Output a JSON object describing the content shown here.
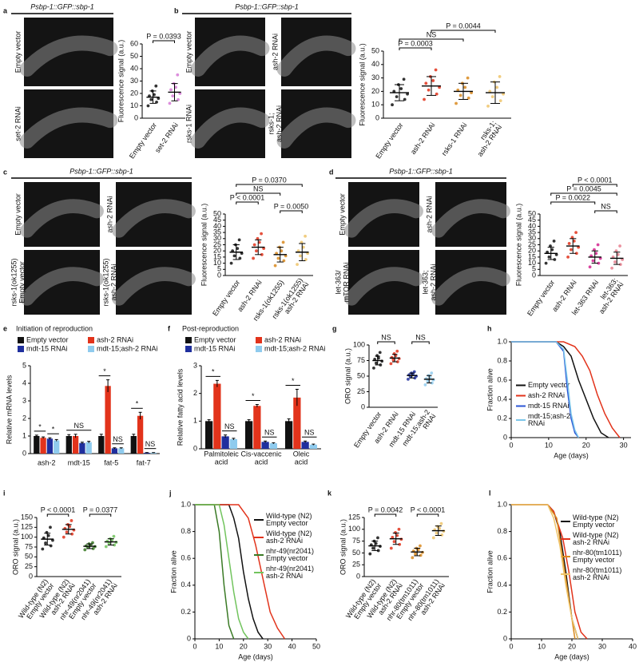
{
  "chart_data": [
    {
      "label": "a",
      "type": "dot",
      "images": {
        "title": "Psbp-1::GFP::sbp-1",
        "labels": [
          "Empty vector",
          "set-2 RNAi"
        ]
      },
      "ylabel": "Fluorescence signal (a.u.)",
      "ylim": [
        0,
        60
      ],
      "yticks": [
        0,
        10,
        20,
        30,
        40,
        50,
        60
      ],
      "categories": [
        "Empty vector",
        "set-2 RNAi"
      ],
      "colors": [
        "#111111",
        "#d67ad6"
      ],
      "mean": [
        17,
        21
      ],
      "sd": [
        5,
        7
      ],
      "points": [
        [
          10,
          13,
          15,
          16,
          18,
          19,
          22,
          26
        ],
        [
          12,
          15,
          18,
          20,
          23,
          25,
          28,
          35
        ]
      ],
      "comparisons": [
        "P = 0.0393"
      ]
    },
    {
      "label": "b",
      "type": "dot",
      "images": {
        "title": "Psbp-1::GFP::sbp-1",
        "labels": [
          "Empty vector",
          "ash-2 RNAi",
          "rsks-1 RNAi",
          [
            "rsks-1;",
            "ash-2 RNAi"
          ]
        ]
      },
      "ylabel": "Fluorescence signal (a.u.)",
      "ylim": [
        0,
        50
      ],
      "yticks": [
        0,
        10,
        20,
        30,
        40,
        50
      ],
      "categories": [
        "Empty vector",
        "ash-2 RNAi",
        "rsks-1 RNAi",
        [
          "rsks-1;",
          "ash-2 RNAi"
        ]
      ],
      "colors": [
        "#111111",
        "#e2331b",
        "#d98a1f",
        "#eec46a"
      ],
      "mean": [
        19,
        24,
        20,
        19
      ],
      "sd": [
        6,
        7,
        6,
        8
      ],
      "points": [
        [
          10,
          14,
          16,
          18,
          20,
          22,
          25,
          29
        ],
        [
          14,
          18,
          21,
          23,
          26,
          28,
          31,
          36
        ],
        [
          11,
          15,
          17,
          19,
          21,
          23,
          26,
          30
        ],
        [
          9,
          13,
          16,
          18,
          20,
          23,
          27,
          31
        ]
      ],
      "comparisons": [
        "P = 0.0003",
        "NS",
        "P = 0.0044"
      ]
    },
    {
      "label": "c",
      "type": "dot",
      "images": {
        "title": "Psbp-1::GFP::sbp-1",
        "labels": [
          "Empty vector",
          "ash-2 RNAi",
          [
            "rsks-1(ok1255)",
            "Empty vector"
          ],
          [
            "rsks-1(ok1255)",
            "ash-2 RNAi"
          ]
        ]
      },
      "ylabel": "Fluorescence signal (a.u.)",
      "ylim": [
        0,
        50
      ],
      "yticks": [
        0,
        5,
        10,
        15,
        20,
        25,
        30,
        35,
        40,
        45,
        50
      ],
      "categories": [
        "Empty vector",
        "ash-2 RNAi",
        "rsks-1(ok1255)",
        [
          "rsks-1(ok1255)",
          "ash-2 RNAi"
        ]
      ],
      "colors": [
        "#111111",
        "#e2331b",
        "#d98a1f",
        "#eec46a"
      ],
      "mean": [
        19,
        23,
        17,
        19
      ],
      "sd": [
        6,
        6,
        6,
        7
      ],
      "points": [
        [
          10,
          14,
          16,
          18,
          20,
          22,
          25,
          29
        ],
        [
          14,
          17,
          20,
          22,
          25,
          27,
          30,
          34
        ],
        [
          8,
          12,
          14,
          16,
          18,
          20,
          23,
          27
        ],
        [
          9,
          13,
          16,
          18,
          20,
          23,
          27,
          32
        ]
      ],
      "comparisons": [
        "P < 0.0001",
        "NS",
        "P = 0.0370",
        "P = 0.0050"
      ]
    },
    {
      "label": "d",
      "type": "dot",
      "images": {
        "title": "Psbp-1::GFP::sbp-1",
        "labels": [
          "Empty vector",
          "ash-2 RNAi",
          [
            "let-363/",
            "mTOR RNAi"
          ],
          [
            "let-363;",
            "ash-2 RNAi"
          ]
        ]
      },
      "ylabel": "Fluorescence signal (a.u.)",
      "ylim": [
        0,
        50
      ],
      "yticks": [
        0,
        5,
        10,
        15,
        20,
        25,
        30,
        35,
        40,
        45,
        50
      ],
      "categories": [
        "Empty vector",
        "ash-2 RNAi",
        "let-363 RNAi",
        [
          "let-363;",
          "ash-2 RNAi"
        ]
      ],
      "colors": [
        "#111111",
        "#e2331b",
        "#d4258f",
        "#e8808f"
      ],
      "mean": [
        18,
        24,
        15,
        14
      ],
      "sd": [
        5,
        6,
        5,
        5
      ],
      "points": [
        [
          10,
          13,
          15,
          17,
          19,
          21,
          24,
          28
        ],
        [
          15,
          18,
          21,
          23,
          26,
          28,
          31,
          35
        ],
        [
          7,
          10,
          12,
          14,
          16,
          18,
          21,
          25
        ],
        [
          6,
          9,
          11,
          13,
          15,
          17,
          20,
          24
        ]
      ],
      "comparisons": [
        "P < 0.0001",
        "P = 0.0045",
        "P = 0.0022",
        "NS"
      ]
    },
    {
      "label": "e",
      "type": "bar",
      "title": "Initiation of reproduction",
      "ylabel": "Relative mRNA levels",
      "ylim": [
        0,
        5
      ],
      "yticks": [
        0,
        1,
        2,
        3,
        4,
        5
      ],
      "categories": [
        "ash-2",
        "mdt-15",
        "fat-5",
        "fat-7"
      ],
      "series": [
        {
          "name": "Empty vector",
          "color": "#111111",
          "values": [
            1,
            1,
            1,
            1
          ],
          "errors": [
            0.05,
            0.08,
            0.1,
            0.1
          ]
        },
        {
          "name": "ash-2 RNAi",
          "color": "#e2331b",
          "values": [
            0.9,
            1.0,
            3.85,
            2.15
          ],
          "errors": [
            0.05,
            0.1,
            0.35,
            0.2
          ]
        },
        {
          "name": "mdt-15 RNAi",
          "color": "#1f2f9e",
          "values": [
            0.85,
            0.6,
            0.3,
            0.05
          ],
          "errors": [
            0.05,
            0.05,
            0.03,
            0.01
          ]
        },
        {
          "name": "mdt-15;ash-2 RNAi",
          "color": "#8fcbee",
          "values": [
            0.75,
            0.65,
            0.3,
            0.05
          ],
          "errors": [
            0.05,
            0.05,
            0.03,
            0.01
          ]
        }
      ],
      "annotations": [
        "*",
        "*",
        "NS",
        "*",
        "NS",
        "*",
        "NS"
      ]
    },
    {
      "label": "f",
      "type": "bar",
      "title": "Post-reproduction",
      "ylabel": "Relative fatty acid levels",
      "ylim": [
        0,
        3
      ],
      "yticks": [
        0,
        1,
        2,
        3
      ],
      "categories": [
        [
          "Palmitoleic",
          "acid"
        ],
        [
          "Cis-vaccenic",
          "acid"
        ],
        [
          "Oleic",
          "acid"
        ]
      ],
      "series": [
        {
          "name": "Empty vector",
          "color": "#111111",
          "values": [
            1,
            1,
            1
          ],
          "errors": [
            0.05,
            0.05,
            0.08
          ]
        },
        {
          "name": "ash-2 RNAi",
          "color": "#e2331b",
          "values": [
            2.35,
            1.55,
            1.85
          ],
          "errors": [
            0.12,
            0.05,
            0.3
          ]
        },
        {
          "name": "mdt-15 RNAi",
          "color": "#1f2f9e",
          "values": [
            0.45,
            0.25,
            0.25
          ],
          "errors": [
            0.05,
            0.03,
            0.03
          ]
        },
        {
          "name": "mdt-15;ash-2 RNAi",
          "color": "#8fcbee",
          "values": [
            0.35,
            0.2,
            0.15
          ],
          "errors": [
            0.03,
            0.02,
            0.02
          ]
        }
      ],
      "annotations": [
        "*",
        "NS",
        "*",
        "NS",
        "*",
        "NS"
      ]
    },
    {
      "label": "g",
      "type": "dot",
      "ylabel": "ORO signal (a.u.)",
      "ylim": [
        0,
        100
      ],
      "yticks": [
        0,
        25,
        50,
        75,
        100
      ],
      "categories": [
        "Empty vector",
        "ash-2 RNAi",
        "mdt-15 RNAi",
        [
          "mdt-15;ash-2",
          "RNAi"
        ]
      ],
      "colors": [
        "#111111",
        "#e2331b",
        "#1f2f9e",
        "#8fcbee"
      ],
      "mean": [
        75,
        79,
        51,
        45
      ],
      "sd": [
        7,
        6,
        4,
        6
      ],
      "points": [
        [
          63,
          68,
          71,
          74,
          77,
          79,
          83,
          88
        ],
        [
          70,
          73,
          76,
          78,
          80,
          83,
          86,
          90
        ],
        [
          45,
          47,
          49,
          50,
          52,
          53,
          55,
          57
        ],
        [
          36,
          39,
          42,
          44,
          46,
          48,
          51,
          55
        ]
      ],
      "comparisons": [
        "NS",
        "NS"
      ]
    },
    {
      "label": "h",
      "type": "survival",
      "xlabel": "Age (days)",
      "ylabel": "Fraction alive",
      "xlim": [
        0,
        32
      ],
      "xticks": [
        0,
        10,
        20,
        30
      ],
      "ylim": [
        0,
        1
      ],
      "yticks": [
        0,
        0.2,
        0.4,
        0.6,
        0.8,
        {
          "value": 1,
          "label": "1.0"
        }
      ],
      "series": [
        {
          "name": "Empty vector",
          "color": "#111111",
          "x": [
            0,
            12,
            14,
            16,
            18,
            20,
            22,
            24,
            26
          ],
          "values": [
            1,
            1,
            0.95,
            0.85,
            0.6,
            0.4,
            0.2,
            0.05,
            0
          ]
        },
        {
          "name": "ash-2 RNAi",
          "color": "#e2331b",
          "x": [
            0,
            14,
            17,
            19,
            21,
            23,
            25,
            27,
            29
          ],
          "values": [
            1,
            1,
            0.95,
            0.85,
            0.7,
            0.45,
            0.25,
            0.1,
            0
          ]
        },
        {
          "name": "mdt-15 RNAi",
          "color": "#2b55d6",
          "x": [
            0,
            12,
            14,
            15,
            16,
            17,
            18
          ],
          "values": [
            1,
            1,
            0.9,
            0.5,
            0.2,
            0.05,
            0
          ]
        },
        {
          "name": [
            "mdt-15;ash-2",
            "RNAi"
          ],
          "color": "#7cc6ea",
          "x": [
            0,
            12,
            14,
            15,
            16,
            17,
            18
          ],
          "values": [
            1,
            1,
            0.92,
            0.6,
            0.25,
            0.08,
            0
          ]
        }
      ]
    },
    {
      "label": "i",
      "type": "dot",
      "ylabel": "ORO signal (a.u.)",
      "ylim": [
        0,
        150
      ],
      "yticks": [
        0,
        25,
        50,
        75,
        100,
        125,
        150
      ],
      "categories": [
        [
          "Wild-type (N2)",
          "Empty vector"
        ],
        [
          "Wild-type (N2)",
          "ash-2 RNAi"
        ],
        [
          "nhr-49(nr2041)",
          "Empty vector"
        ],
        [
          "nhr-49(nr2041)",
          "ash-2 RNAi"
        ]
      ],
      "colors": [
        "#111111",
        "#e2331b",
        "#3a7a25",
        "#72c45e"
      ],
      "mean": [
        95,
        120,
        77,
        88
      ],
      "sd": [
        15,
        12,
        6,
        8
      ],
      "points": [
        [
          70,
          78,
          85,
          92,
          98,
          104,
          112,
          125
        ],
        [
          100,
          108,
          113,
          118,
          122,
          127,
          132,
          142
        ],
        [
          68,
          71,
          74,
          76,
          78,
          80,
          83,
          86
        ],
        [
          76,
          80,
          84,
          87,
          90,
          93,
          96,
          102
        ]
      ],
      "comparisons": [
        "P < 0.0001",
        "P = 0.0377"
      ]
    },
    {
      "label": "j",
      "type": "survival",
      "xlabel": "Age (days)",
      "ylabel": "Fraction alive",
      "xlim": [
        0,
        50
      ],
      "xticks": [
        0,
        10,
        20,
        30,
        40,
        50
      ],
      "ylim": [
        0,
        1
      ],
      "yticks": [
        0,
        0.2,
        0.4,
        0.6,
        0.8,
        {
          "value": 1,
          "label": "1.0"
        }
      ],
      "series": [
        {
          "name": [
            "Wild-type (N2)",
            "Empty vector"
          ],
          "color": "#111111",
          "x": [
            0,
            14,
            16,
            18,
            20,
            22,
            24,
            26,
            28
          ],
          "values": [
            1,
            1,
            0.9,
            0.75,
            0.5,
            0.3,
            0.15,
            0.05,
            0
          ]
        },
        {
          "name": [
            "Wild-type (N2)",
            "ash-2 RNAi"
          ],
          "color": "#e2331b",
          "x": [
            0,
            18,
            22,
            25,
            28,
            31,
            34,
            37
          ],
          "values": [
            1,
            1,
            0.9,
            0.7,
            0.45,
            0.2,
            0.08,
            0
          ]
        },
        {
          "name": [
            "nhr-49(nr2041)",
            "Empty vector"
          ],
          "color": "#3a7a25",
          "x": [
            0,
            8,
            10,
            12,
            14,
            16
          ],
          "values": [
            1,
            1,
            0.8,
            0.4,
            0.1,
            0
          ]
        },
        {
          "name": [
            "nhr-49(nr2041)",
            "ash-2 RNAi"
          ],
          "color": "#72c45e",
          "x": [
            0,
            10,
            12,
            14,
            16,
            18,
            20,
            22
          ],
          "values": [
            1,
            1,
            0.85,
            0.6,
            0.35,
            0.15,
            0.05,
            0
          ]
        }
      ]
    },
    {
      "label": "k",
      "type": "dot",
      "ylabel": "ORO signal (a.u.)",
      "ylim": [
        0,
        125
      ],
      "yticks": [
        0,
        25,
        50,
        75,
        100,
        125
      ],
      "categories": [
        [
          "Wild-type (N2)",
          "Empty vector"
        ],
        [
          "Wild-type (N2)",
          "ash-2 RNAi"
        ],
        [
          "nhr-80(tm1011)",
          "Empty vector"
        ],
        [
          "nhr-80(tm1011)",
          "ash-2 RNAi"
        ]
      ],
      "colors": [
        "#111111",
        "#e2331b",
        "#d98a1f",
        "#eec46a"
      ],
      "mean": [
        65,
        80,
        52,
        97
      ],
      "sd": [
        10,
        12,
        8,
        10
      ],
      "points": [
        [
          48,
          55,
          60,
          64,
          67,
          70,
          75,
          82
        ],
        [
          60,
          68,
          74,
          79,
          83,
          87,
          93,
          100
        ],
        [
          40,
          45,
          48,
          51,
          54,
          57,
          60,
          65
        ],
        [
          82,
          88,
          92,
          96,
          99,
          102,
          106,
          112
        ]
      ],
      "comparisons": [
        "P = 0.0042",
        "P < 0.0001"
      ]
    },
    {
      "label": "l",
      "type": "survival",
      "xlabel": "Age (days)",
      "ylabel": "Fraction alive",
      "xlim": [
        0,
        40
      ],
      "xticks": [
        0,
        10,
        20,
        30,
        40
      ],
      "ylim": [
        0,
        1
      ],
      "yticks": [
        0,
        0.2,
        0.4,
        0.6,
        0.8,
        {
          "value": 1,
          "label": "1.0"
        }
      ],
      "series": [
        {
          "name": [
            "Wild-type (N2)",
            "Empty vector"
          ],
          "color": "#111111",
          "x": [
            0,
            12,
            14,
            16,
            18,
            20,
            22
          ],
          "values": [
            1,
            1,
            0.95,
            0.8,
            0.5,
            0.15,
            0
          ]
        },
        {
          "name": [
            "Wild-type (N2)",
            "ash-2 RNAi"
          ],
          "color": "#e2331b",
          "x": [
            0,
            12,
            14,
            17,
            19,
            21,
            23,
            25
          ],
          "values": [
            1,
            1,
            0.95,
            0.75,
            0.5,
            0.2,
            0.05,
            0
          ]
        },
        {
          "name": [
            "nhr-80(tm1011)",
            "Empty vector"
          ],
          "color": "#d98a1f",
          "x": [
            0,
            12,
            15,
            17,
            19,
            21
          ],
          "values": [
            1,
            1,
            0.9,
            0.6,
            0.3,
            0
          ]
        },
        {
          "name": [
            "nhr-80(tm1011)",
            "ash-2 RNAi"
          ],
          "color": "#eec46a",
          "x": [
            0,
            12,
            14,
            16,
            18,
            20,
            22
          ],
          "values": [
            1,
            1,
            0.9,
            0.7,
            0.4,
            0.15,
            0
          ]
        }
      ]
    }
  ]
}
